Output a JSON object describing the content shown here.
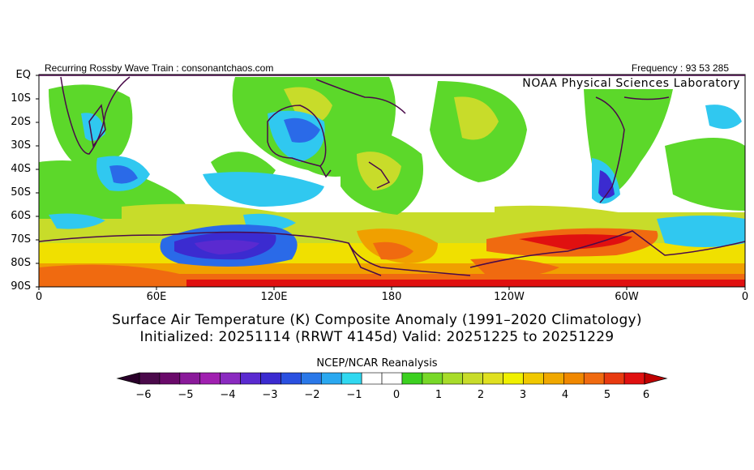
{
  "header": {
    "left": "Recurring Rossby Wave Train : consonantchaos.com",
    "right": "Frequency : 93 53 285",
    "org": "NOAA Physical Sciences Laboratory"
  },
  "map": {
    "lat_labels": [
      "EQ",
      "10S",
      "20S",
      "30S",
      "40S",
      "50S",
      "60S",
      "70S",
      "80S",
      "90S"
    ],
    "lon_labels": [
      "0",
      "60E",
      "120E",
      "180",
      "120W",
      "60W",
      "0"
    ],
    "colors": {
      "neg6": "#4b0a4b",
      "neg5": "#7a1a90",
      "neg4": "#9a2ec0",
      "neg3": "#3b2bd0",
      "neg2": "#2a6ae8",
      "neg1": "#30c8f0",
      "neutral": "#ffffff",
      "pos1": "#5cd82a",
      "pos2": "#c8dc2a",
      "pos3": "#f0e000",
      "pos4": "#f0a000",
      "pos5": "#f06a10",
      "pos6": "#e01010",
      "coast": "#4a0a4a"
    }
  },
  "title": {
    "line1": "Surface Air Temperature (K) Composite Anomaly (1991–2020 Climatology)",
    "line2": "Initialized: 20251114 (RRWT 4145d) Valid: 20251225 to 20251229"
  },
  "colorbar": {
    "title": "NCEP/NCAR Reanalysis",
    "labels": [
      "−6",
      "−5",
      "−4",
      "−3",
      "−2",
      "−1",
      "0",
      "1",
      "2",
      "3",
      "4",
      "5",
      "6"
    ],
    "swatches": [
      "#4b0a4b",
      "#6a0a6a",
      "#8a1a9a",
      "#a020b0",
      "#8a2ac0",
      "#5a2ad0",
      "#3b2bd0",
      "#2a50e0",
      "#2a78e8",
      "#2aa8f0",
      "#30d8f0",
      "#ffffff",
      "#ffffff",
      "#3cd020",
      "#78d828",
      "#a8dc2a",
      "#c8dc2a",
      "#e0e020",
      "#f0f000",
      "#f0c800",
      "#f0a800",
      "#f08800",
      "#f06a10",
      "#e83a10",
      "#e01010"
    ]
  }
}
